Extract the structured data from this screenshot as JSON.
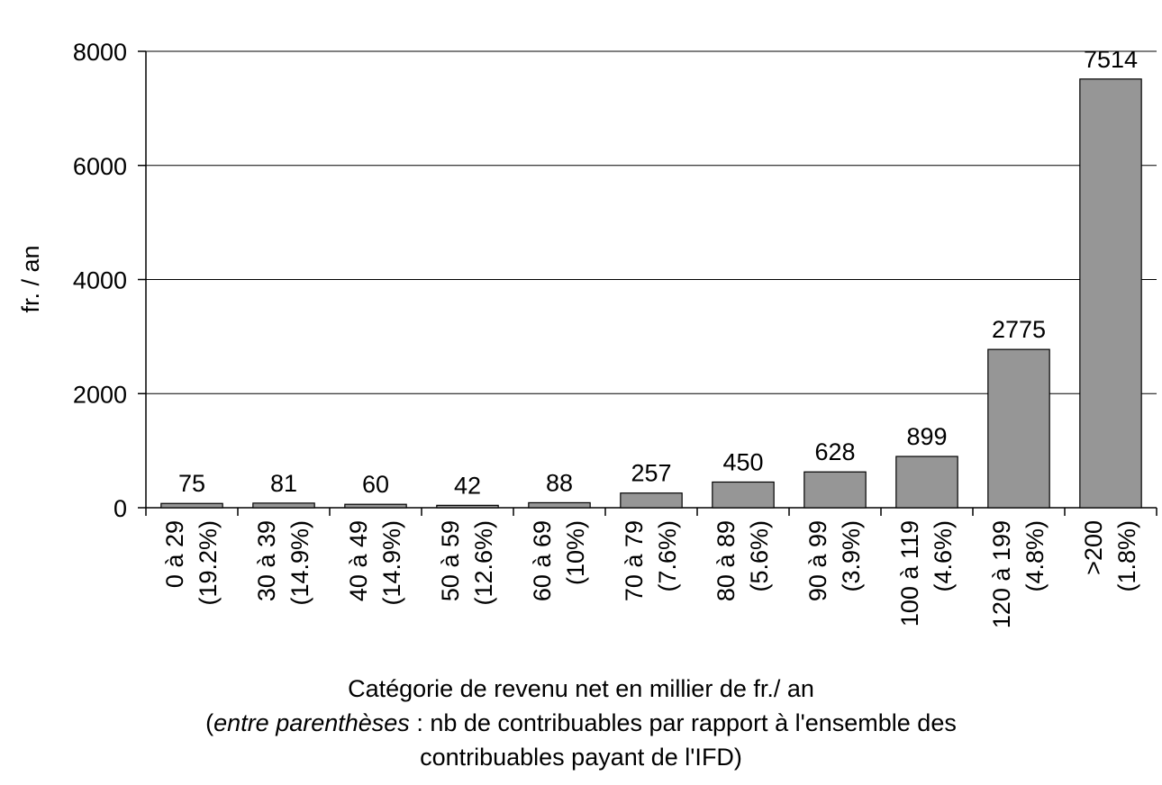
{
  "chart_data": {
    "type": "bar",
    "categories": [
      "0 à 29",
      "30 à 39",
      "40 à 49",
      "50 à 59",
      "60 à 69",
      "70 à 79",
      "80 à 89",
      "90 à 99",
      "100 à 119",
      "120 à 199",
      ">200"
    ],
    "category_shares": [
      "(19.2%)",
      "(14.9%)",
      "(14.9%)",
      "(12.6%)",
      "(10%)",
      "(7.6%)",
      "(5.6%)",
      "(3.9%)",
      "(4.6%)",
      "(4.8%)",
      "(1.8%)"
    ],
    "values": [
      75,
      81,
      60,
      42,
      88,
      257,
      450,
      628,
      899,
      2775,
      7514
    ],
    "data_labels": [
      "75",
      "81",
      "60",
      "42",
      "88",
      "257",
      "450",
      "628",
      "899",
      "2775",
      "7514"
    ],
    "ylabel": "fr. / an",
    "xlabel": {
      "line1": "Catégorie de revenu net en millier de fr./ an",
      "line2_open": "(",
      "line2_italic": "entre parenthèses",
      "line2_rest": " : nb de contribuables par rapport à l'ensemble des",
      "line3": "contribuables payant de l'IFD)"
    },
    "ylim": [
      0,
      8000
    ],
    "yticks": [
      0,
      2000,
      4000,
      6000,
      8000
    ],
    "ytick_labels": [
      "0",
      "2000",
      "4000",
      "6000",
      "8000"
    ],
    "grid": true,
    "legend": "none",
    "colors": {
      "bar_fill": "#969696",
      "bar_stroke": "#000000",
      "grid": "#000000"
    }
  }
}
